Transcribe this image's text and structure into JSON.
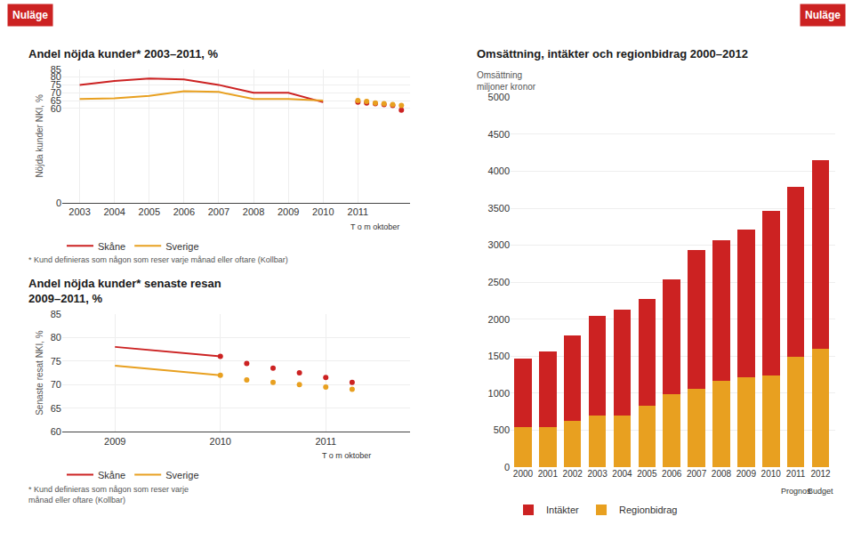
{
  "chart_data": [
    {
      "type": "line",
      "title": "Andel nöjda kunder* 2003–2011, %",
      "ylabel": "Nöjda kunder NKI, %",
      "xlim": [
        2002.5,
        2012.5
      ],
      "xticks": [
        2003,
        2004,
        2005,
        2006,
        2007,
        2008,
        2009,
        2010,
        2011
      ],
      "ylim": [
        0,
        85
      ],
      "yticks": [
        0,
        60,
        65,
        70,
        75,
        80,
        85
      ],
      "grid": true,
      "legend": "bottom left",
      "series": [
        {
          "name": "Skåne",
          "type": "line",
          "line_style": "solid",
          "color": "#cc2222",
          "x": [
            2003,
            2004,
            2005,
            2006,
            2007,
            2008,
            2009,
            2010
          ],
          "values": [
            75,
            77.5,
            79,
            78.5,
            75,
            70,
            70,
            64
          ]
        },
        {
          "name": "Sverige",
          "type": "line",
          "line_style": "solid",
          "color": "#e8a020",
          "x": [
            2003,
            2004,
            2005,
            2006,
            2007,
            2008,
            2009,
            2010
          ],
          "values": [
            66,
            66.5,
            68,
            71,
            70.5,
            66,
            66,
            65
          ]
        },
        {
          "name": "Skåne",
          "type": "scatter",
          "marker": "circle",
          "color": "#cc2222",
          "x": [
            2011,
            2011.25,
            2011.5,
            2011.75,
            2012,
            2012.25
          ],
          "values": [
            64,
            63.5,
            63,
            62.5,
            62,
            59
          ]
        },
        {
          "name": "Sverige",
          "type": "scatter",
          "marker": "circle",
          "color": "#e8a020",
          "x": [
            2011,
            2011.25,
            2011.5,
            2011.75,
            2012,
            2012.25
          ],
          "values": [
            65,
            64.5,
            63.5,
            63,
            62.5,
            62
          ]
        }
      ],
      "annotations": [
        {
          "text": "T o m oktober",
          "x": 2011.5
        },
        {
          "text": "Nuläge",
          "color": "#cc2222"
        }
      ],
      "footnote": "* Kund definieras som någon som reser varje månad eller oftare (Kollbar)"
    },
    {
      "type": "bar",
      "title": "Omsättning, intäkter och regionbidrag 2000–2012",
      "ylabel": "Omsättning\nmiljoner kronor",
      "categories": [
        "2000",
        "2001",
        "2002",
        "2003",
        "2004",
        "2005",
        "2006",
        "2007",
        "2008",
        "2009",
        "2010",
        "2011",
        "2012"
      ],
      "ylim": [
        0,
        5000
      ],
      "yticks": [
        0,
        500,
        1000,
        1500,
        2000,
        2500,
        3000,
        3500,
        4000,
        4500,
        5000
      ],
      "stacked": true,
      "grid": "y",
      "legend": "bottom left",
      "series": [
        {
          "name": "Regionbidrag",
          "color": "#e8a020",
          "values": [
            540,
            540,
            620,
            700,
            700,
            830,
            980,
            1060,
            1170,
            1210,
            1240,
            1490,
            1600
          ]
        },
        {
          "name": "Intäkter",
          "color": "#cc2222",
          "values": [
            930,
            1020,
            1155,
            1350,
            1430,
            1440,
            1555,
            1870,
            1900,
            2000,
            2220,
            2300,
            2550
          ]
        }
      ],
      "annotations": [
        {
          "text": "Prognos",
          "x": "2011"
        },
        {
          "text": "Budget",
          "x": "2012"
        },
        {
          "text": "Nuläge",
          "color": "#cc2222"
        }
      ]
    },
    {
      "type": "line",
      "title": "Andel nöjda kunder* senaste resan\n2009–2011, %",
      "ylabel": "Senaste resat NKI, %",
      "xlim": [
        2008.5,
        2011.8
      ],
      "xticks": [
        2009,
        2010,
        2011
      ],
      "ylim": [
        60,
        85
      ],
      "yticks": [
        60,
        65,
        70,
        75,
        80,
        85
      ],
      "grid": true,
      "legend": "bottom left",
      "series": [
        {
          "name": "Skåne",
          "type": "line",
          "line_style": "solid",
          "color": "#cc2222",
          "x": [
            2009,
            2010
          ],
          "values": [
            78,
            76
          ]
        },
        {
          "name": "Sverige",
          "type": "line",
          "line_style": "solid",
          "color": "#e8a020",
          "x": [
            2009,
            2010
          ],
          "values": [
            74,
            72
          ]
        },
        {
          "name": "Skåne",
          "type": "scatter",
          "marker": "circle",
          "color": "#cc2222",
          "x": [
            2010,
            2010.25,
            2010.5,
            2010.75,
            2011,
            2011.25
          ],
          "values": [
            76,
            74.5,
            73.5,
            72.5,
            71.5,
            70.5
          ]
        },
        {
          "name": "Sverige",
          "type": "scatter",
          "marker": "circle",
          "color": "#e8a020",
          "x": [
            2010,
            2010.25,
            2010.5,
            2010.75,
            2011,
            2011.25
          ],
          "values": [
            72,
            71,
            70.5,
            70,
            69.5,
            69
          ]
        }
      ],
      "annotations": [
        {
          "text": "T o m oktober",
          "x": 2011.2
        }
      ],
      "footnote": "* Kund definieras som någon som reser varje\nmånad eller oftare (Kollbar)"
    }
  ]
}
